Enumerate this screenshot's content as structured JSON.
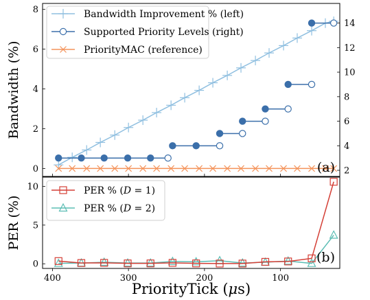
{
  "x_axis": {
    "label": "PriorityTick (μs)",
    "label_main": "PriorityTick (",
    "label_mu": "μ",
    "label_unit": "s)",
    "ticks": [
      400,
      300,
      200,
      100
    ],
    "range": [
      413,
      22
    ],
    "reversed": true
  },
  "colors": {
    "bandwidth": "#8fbfe0",
    "priority": "#3b6faa",
    "reference": "#f4935a",
    "per_d1": "#d43f36",
    "per_d2": "#5bbdb4"
  },
  "chart_data": [
    {
      "type": "line",
      "panel_label": "(a)",
      "ylabel": "Bandwidth (%)",
      "ylim": [
        -0.4,
        8.3
      ],
      "yticks": [
        0,
        2,
        4,
        6,
        8
      ],
      "y2lim": [
        1.5,
        15.6
      ],
      "y2ticks": [
        2,
        4,
        6,
        8,
        10,
        12,
        14
      ],
      "legend_position": "top-left",
      "series": [
        {
          "name": "Bandwidth Improvement % (left)",
          "axis": "left",
          "marker": "plus",
          "x": [
            392,
            374,
            355,
            337,
            318,
            300,
            281,
            263,
            244,
            226,
            207,
            189,
            170,
            152,
            133,
            115,
            96,
            78,
            59,
            41,
            30
          ],
          "y": [
            0.18,
            0.56,
            0.93,
            1.31,
            1.68,
            2.06,
            2.43,
            2.81,
            3.18,
            3.56,
            3.93,
            4.31,
            4.68,
            5.06,
            5.43,
            5.81,
            6.18,
            6.56,
            6.93,
            7.31,
            7.4
          ]
        },
        {
          "name": "Supported Priority Levels (right)",
          "axis": "right",
          "marker": "circle",
          "steps": [
            {
              "x_start": 392,
              "x_end": 248,
              "level": 3,
              "filled_x": [
                392,
                362,
                332,
                301,
                271
              ],
              "open_x": [
                248
              ]
            },
            {
              "x_start": 242,
              "x_end": 180,
              "level": 4,
              "filled_x": [
                242,
                211
              ],
              "open_x": [
                180
              ]
            },
            {
              "x_start": 180,
              "x_end": 150,
              "level": 5,
              "filled_x": [
                180
              ],
              "open_x": [
                150
              ]
            },
            {
              "x_start": 150,
              "x_end": 120,
              "level": 6,
              "filled_x": [
                150
              ],
              "open_x": [
                120
              ]
            },
            {
              "x_start": 120,
              "x_end": 90,
              "level": 7,
              "filled_x": [
                120
              ],
              "open_x": [
                90
              ]
            },
            {
              "x_start": 90,
              "x_end": 59,
              "level": 9,
              "filled_x": [
                90
              ],
              "open_x": [
                59
              ]
            },
            {
              "x_start": 59,
              "x_end": 30,
              "level": 14,
              "filled_x": [
                59
              ],
              "open_x": [
                30
              ]
            }
          ]
        },
        {
          "name": "PriorityMAC (reference)",
          "axis": "left",
          "marker": "x",
          "x": [
            392,
            374,
            355,
            337,
            318,
            300,
            281,
            263,
            244,
            226,
            207,
            189,
            170,
            152,
            133,
            115,
            96,
            78,
            59,
            41,
            30
          ],
          "y": [
            0,
            0,
            0,
            0,
            0,
            0,
            0,
            0,
            0,
            0,
            0,
            0,
            0,
            0,
            0,
            0,
            0,
            0,
            0,
            0,
            0
          ]
        }
      ]
    },
    {
      "type": "line",
      "panel_label": "(b)",
      "ylabel": "PER (%)",
      "ylim": [
        -0.6,
        11.2
      ],
      "yticks": [
        0,
        5,
        10
      ],
      "legend_position": "top-left",
      "series": [
        {
          "name": "PER % (D = 1)",
          "name_main": "PER % (",
          "name_var": "D",
          "name_rest": " = 1)",
          "marker": "square",
          "x": [
            392,
            362,
            332,
            301,
            271,
            242,
            211,
            180,
            150,
            120,
            90,
            59,
            30
          ],
          "y": [
            0.35,
            0.1,
            0.12,
            0.05,
            0.05,
            0.12,
            0.05,
            0.03,
            0.03,
            0.25,
            0.3,
            0.7,
            10.6
          ]
        },
        {
          "name": "PER % (D = 2)",
          "name_main": "PER % (",
          "name_var": "D",
          "name_rest": " = 2)",
          "marker": "triangle",
          "x": [
            392,
            362,
            332,
            301,
            271,
            242,
            211,
            180,
            150,
            120,
            90,
            59,
            30
          ],
          "y": [
            0.05,
            0.1,
            0.2,
            0.1,
            0.1,
            0.3,
            0.25,
            0.4,
            0.1,
            0.2,
            0.35,
            0.05,
            3.7
          ]
        }
      ]
    }
  ]
}
